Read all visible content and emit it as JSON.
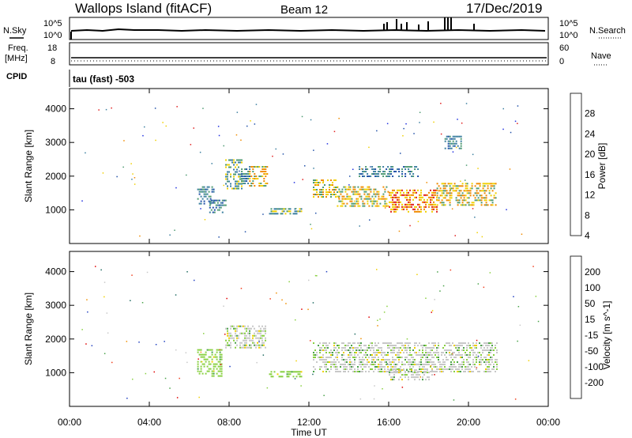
{
  "header": {
    "title": "Wallops Island (fitACF)",
    "beam": "Beam 12",
    "date": "17/Dec/2019"
  },
  "strip_labels": {
    "nsky": "N.Sky",
    "nsky_ticks": [
      "10^5",
      "10^0"
    ],
    "nsearch": "N.Search",
    "nsearch_ticks": [
      "10^5",
      "10^0"
    ],
    "freq": "Freq.",
    "freq_unit": "[MHz]",
    "freq_ticks": [
      "18",
      "8"
    ],
    "nave": "Nave",
    "nave_ticks": [
      "60",
      "0"
    ],
    "cpid": "CPID",
    "cpid_text": "tau (fast) -503"
  },
  "chart_data": [
    {
      "type": "heatmap",
      "panel": "power",
      "ylabel": "Slant Range [km]",
      "yticks": [
        1000,
        2000,
        3000,
        4000
      ],
      "ylim": [
        0,
        4600
      ],
      "xlim_hours": [
        0,
        24
      ],
      "colorbar": {
        "label": "Power [dB]",
        "ticks": [
          "4",
          "8",
          "12",
          "16",
          "20",
          "24",
          "28"
        ],
        "colors": [
          "#2030e0",
          "#2050a8",
          "#3c7fa0",
          "#4e9a72",
          "#f0d000",
          "#f08a00",
          "#e02020"
        ]
      },
      "regions": [
        {
          "t0": 6.4,
          "t1": 7.2,
          "r0": 1200,
          "r1": 1700,
          "level": 2
        },
        {
          "t0": 7.0,
          "t1": 7.8,
          "r0": 900,
          "r1": 1300,
          "level": 2
        },
        {
          "t0": 7.8,
          "t1": 8.6,
          "r0": 1600,
          "r1": 2500,
          "level": 3
        },
        {
          "t0": 8.6,
          "t1": 9.0,
          "r0": 1800,
          "r1": 2300,
          "level": 2
        },
        {
          "t0": 9.0,
          "t1": 9.9,
          "r0": 1700,
          "r1": 2300,
          "level": 4
        },
        {
          "t0": 10.0,
          "t1": 11.6,
          "r0": 850,
          "r1": 1050,
          "level": 3
        },
        {
          "t0": 12.2,
          "t1": 13.4,
          "r0": 1400,
          "r1": 1900,
          "level": 4
        },
        {
          "t0": 13.4,
          "t1": 16.0,
          "r0": 1100,
          "r1": 1700,
          "level": 4
        },
        {
          "t0": 16.0,
          "t1": 18.4,
          "r0": 900,
          "r1": 1600,
          "level": 5
        },
        {
          "t0": 18.4,
          "t1": 21.4,
          "r0": 1100,
          "r1": 1800,
          "level": 4
        },
        {
          "t0": 14.5,
          "t1": 17.5,
          "r0": 2000,
          "r1": 2300,
          "level": 2
        },
        {
          "t0": 18.8,
          "t1": 19.6,
          "r0": 2800,
          "r1": 3200,
          "level": 2
        }
      ]
    },
    {
      "type": "heatmap",
      "panel": "velocity",
      "ylabel": "Slant Range [km]",
      "xlabel": "Time UT",
      "xticks": [
        "00:00",
        "04:00",
        "08:00",
        "12:00",
        "16:00",
        "20:00",
        "00:00"
      ],
      "yticks": [
        1000,
        2000,
        3000,
        4000
      ],
      "ylim": [
        0,
        4600
      ],
      "xlim_hours": [
        0,
        24
      ],
      "colorbar": {
        "label": "Velocity [m s^-1]",
        "ticks": [
          "200",
          "100",
          "50",
          "15",
          "-15",
          "-50",
          "-100",
          "-200"
        ],
        "colors": [
          "#2040c0",
          "#1e6a60",
          "#4aa24a",
          "#88d040",
          "#c8c8c8",
          "#f0d000",
          "#f09000",
          "#f04020",
          "#e00000"
        ]
      },
      "regions": [
        {
          "t0": 6.4,
          "t1": 7.6,
          "r0": 900,
          "r1": 1700,
          "level": 3
        },
        {
          "t0": 7.8,
          "t1": 9.8,
          "r0": 1700,
          "r1": 2400,
          "level": 4
        },
        {
          "t0": 10.0,
          "t1": 11.6,
          "r0": 850,
          "r1": 1050,
          "level": 3
        },
        {
          "t0": 12.2,
          "t1": 21.4,
          "r0": 1000,
          "r1": 1900,
          "level": 4
        },
        {
          "t0": 16.0,
          "t1": 18.2,
          "r0": 800,
          "r1": 1100,
          "level": 4
        }
      ]
    }
  ]
}
